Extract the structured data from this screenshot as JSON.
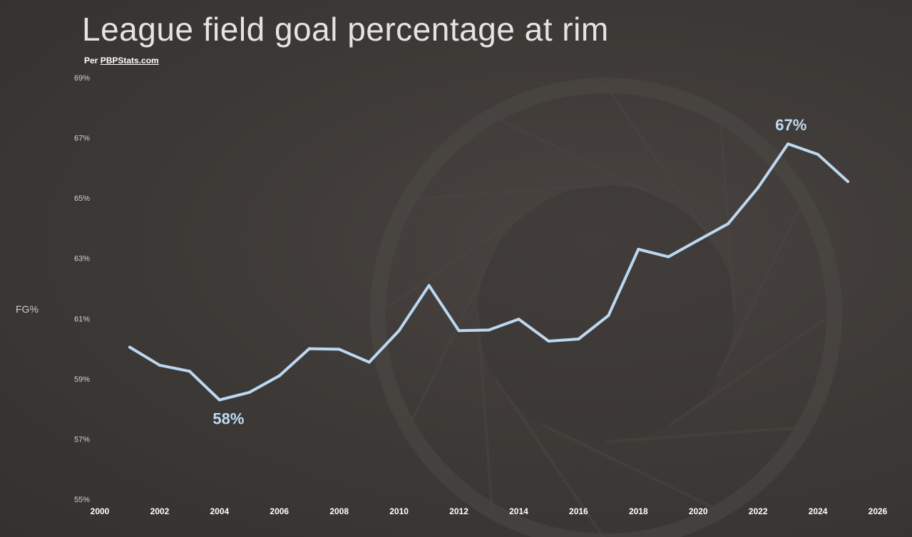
{
  "chart_data": {
    "type": "line",
    "title": "League field goal percentage at rim",
    "subtitle_prefix": "Per ",
    "subtitle_link": "PBPStats.com",
    "ylabel": "FG%",
    "xlabel": "",
    "xlim": [
      2000,
      2026
    ],
    "ylim": [
      55,
      69
    ],
    "x_ticks": [
      "2000",
      "2002",
      "2004",
      "2006",
      "2008",
      "2010",
      "2012",
      "2014",
      "2016",
      "2018",
      "2020",
      "2022",
      "2024",
      "2026"
    ],
    "y_ticks": [
      "55%",
      "57%",
      "59%",
      "61%",
      "63%",
      "65%",
      "67%",
      "69%"
    ],
    "line_color": "#bcd8f1",
    "series": [
      {
        "x": [
          2001,
          2002,
          2003,
          2004,
          2005,
          2006,
          2007,
          2008,
          2009,
          2010,
          2011,
          2012,
          2013,
          2014,
          2015,
          2016,
          2017,
          2018,
          2019,
          2020,
          2021,
          2022,
          2023,
          2024,
          2025
        ],
        "values": [
          60.05,
          59.45,
          59.25,
          58.3,
          58.55,
          59.1,
          60.0,
          59.98,
          59.55,
          60.6,
          62.1,
          60.6,
          60.62,
          60.98,
          60.25,
          60.32,
          61.1,
          63.3,
          63.05,
          63.6,
          64.15,
          65.35,
          66.8,
          66.45,
          65.55
        ]
      }
    ],
    "annotations": [
      {
        "text": "58%",
        "x": 2004.3,
        "y": 57.5
      },
      {
        "text": "67%",
        "x": 2023.1,
        "y": 67.25
      }
    ]
  }
}
